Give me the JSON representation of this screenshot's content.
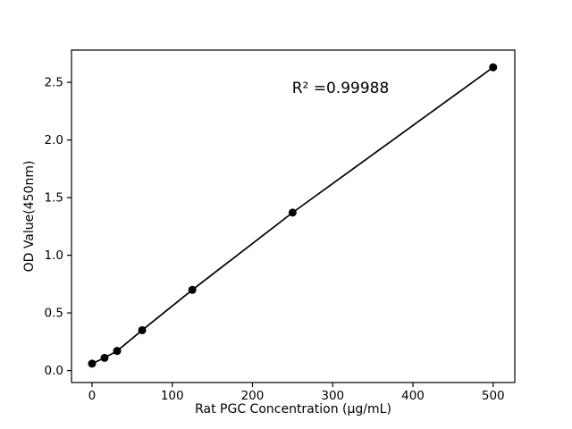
{
  "figure": {
    "background": "#ffffff"
  },
  "chart_data": {
    "type": "line",
    "x": [
      0,
      15.6,
      31.25,
      62.5,
      125,
      250,
      500
    ],
    "y": [
      0.06,
      0.11,
      0.17,
      0.35,
      0.7,
      1.37,
      2.63
    ],
    "annotation": "R² =0.99988",
    "xlabel": "Rat PGC Concentration (μg/mL)",
    "ylabel": "OD Value(450nm)",
    "xticks": [
      0,
      100,
      200,
      300,
      400,
      500
    ],
    "xtick_labels": [
      "0",
      "100",
      "200",
      "300",
      "400",
      "500"
    ],
    "ytick_values": [
      0.0,
      0.5,
      1.0,
      1.5,
      2.0,
      2.5
    ],
    "ytick_labels": [
      "0.0",
      "0.5",
      "1.0",
      "1.5",
      "2.0",
      "2.5"
    ],
    "xlim": [
      -25.6,
      527
    ],
    "ylim": [
      -0.104,
      2.78
    ],
    "grid": false,
    "legend": null,
    "line_color": "#000000",
    "marker_color": "#000000",
    "marker_style": "circle",
    "axis_color": "#000000"
  }
}
